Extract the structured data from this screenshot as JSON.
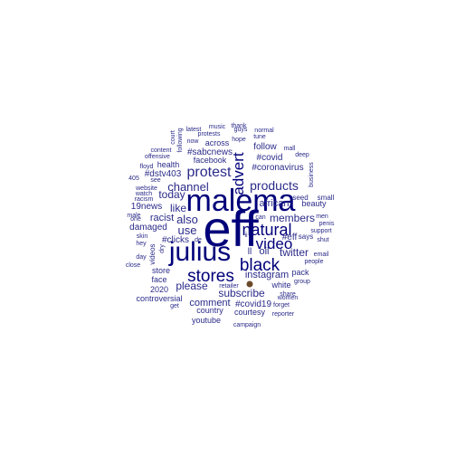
{
  "colors": {
    "background": "#ffffff",
    "small": "#2b2b8a",
    "large": "#00007a"
  },
  "words": [
    {
      "text": "eff",
      "size": "xxl"
    },
    {
      "text": "malema",
      "size": "xl"
    },
    {
      "text": "julius",
      "size": "xl"
    },
    {
      "text": "stores",
      "size": "l"
    },
    {
      "text": "black",
      "size": "l"
    },
    {
      "text": "natural",
      "size": "l"
    },
    {
      "text": "video",
      "size": "l"
    },
    {
      "text": "advert",
      "size": "m"
    },
    {
      "text": "protest",
      "size": "m"
    },
    {
      "text": "channel",
      "size": "m"
    },
    {
      "text": "products",
      "size": "m"
    },
    {
      "text": "today",
      "size": "s"
    },
    {
      "text": "like",
      "size": "s"
    },
    {
      "text": "also",
      "size": "s"
    },
    {
      "text": "use",
      "size": "s"
    },
    {
      "text": "members",
      "size": "s"
    },
    {
      "text": "african",
      "size": "s"
    },
    {
      "text": "instagram",
      "size": "s"
    },
    {
      "text": "subscribe",
      "size": "s"
    },
    {
      "text": "please",
      "size": "s"
    },
    {
      "text": "comment",
      "size": "s"
    },
    {
      "text": "twitter",
      "size": "s"
    },
    {
      "text": "racist",
      "size": "s"
    },
    {
      "text": "oil",
      "size": "s"
    },
    {
      "text": "follow",
      "size": "xs"
    },
    {
      "text": "#covid",
      "size": "xs"
    },
    {
      "text": "#coronavirus",
      "size": "xs"
    },
    {
      "text": "#sabcnews",
      "size": "xs"
    },
    {
      "text": "across",
      "size": "xs"
    },
    {
      "text": "facebook",
      "size": "xs"
    },
    {
      "text": "health",
      "size": "xs"
    },
    {
      "text": "#dstv403",
      "size": "xs"
    },
    {
      "text": "19news",
      "size": "xs"
    },
    {
      "text": "damaged",
      "size": "xs"
    },
    {
      "text": "#clicks",
      "size": "xs"
    },
    {
      "text": "#eff",
      "size": "xs"
    },
    {
      "text": "#covid19",
      "size": "xs"
    },
    {
      "text": "beauty",
      "size": "xs"
    },
    {
      "text": "says",
      "size": "xs"
    },
    {
      "text": "pack",
      "size": "xs"
    },
    {
      "text": "white",
      "size": "xs"
    },
    {
      "text": "store",
      "size": "xs"
    },
    {
      "text": "face",
      "size": "xs"
    },
    {
      "text": "2020",
      "size": "xs"
    },
    {
      "text": "controversial",
      "size": "xs"
    },
    {
      "text": "country",
      "size": "xs"
    },
    {
      "text": "courtesy",
      "size": "xs"
    },
    {
      "text": "youtube",
      "size": "xs"
    },
    {
      "text": "seed",
      "size": "xxs"
    },
    {
      "text": "small",
      "size": "xxs"
    },
    {
      "text": "men",
      "size": "xxs"
    },
    {
      "text": "penis",
      "size": "xxs"
    },
    {
      "text": "support",
      "size": "xxs"
    },
    {
      "text": "shut",
      "size": "xxs"
    },
    {
      "text": "email",
      "size": "xxs"
    },
    {
      "text": "people",
      "size": "xxs"
    },
    {
      "text": "group",
      "size": "xxs"
    },
    {
      "text": "share",
      "size": "xxs"
    },
    {
      "text": "women",
      "size": "xxs"
    },
    {
      "text": "forget",
      "size": "xxs"
    },
    {
      "text": "reporter",
      "size": "xxs"
    },
    {
      "text": "campaign",
      "size": "xxs"
    },
    {
      "text": "retailer",
      "size": "xxs"
    },
    {
      "text": "get",
      "size": "xxs"
    },
    {
      "text": "close",
      "size": "xxs"
    },
    {
      "text": "day",
      "size": "xxs"
    },
    {
      "text": "hey",
      "size": "xxs"
    },
    {
      "text": "skin",
      "size": "xxs"
    },
    {
      "text": "one",
      "size": "xxs"
    },
    {
      "text": "male",
      "size": "xxs"
    },
    {
      "text": "racism",
      "size": "xxs"
    },
    {
      "text": "website",
      "size": "xxs"
    },
    {
      "text": "watch",
      "size": "xxs"
    },
    {
      "text": "405",
      "size": "xxs"
    },
    {
      "text": "see",
      "size": "xxs"
    },
    {
      "text": "floyd",
      "size": "xxs"
    },
    {
      "text": "offensive",
      "size": "xxs"
    },
    {
      "text": "content",
      "size": "xxs"
    },
    {
      "text": "court",
      "size": "xxs"
    },
    {
      "text": "following",
      "size": "xxs"
    },
    {
      "text": "latest",
      "size": "xxs"
    },
    {
      "text": "now",
      "size": "xxs"
    },
    {
      "text": "protests",
      "size": "xxs"
    },
    {
      "text": "music",
      "size": "xxs"
    },
    {
      "text": "thank",
      "size": "xxs"
    },
    {
      "text": "guys",
      "size": "xxs"
    },
    {
      "text": "normal",
      "size": "xxs"
    },
    {
      "text": "tune",
      "size": "xxs"
    },
    {
      "text": "hope",
      "size": "xxs"
    },
    {
      "text": "mall",
      "size": "xxs"
    },
    {
      "text": "deep",
      "size": "xxs"
    },
    {
      "text": "business",
      "size": "xxs"
    },
    {
      "text": "can",
      "size": "xxs"
    },
    {
      "text": "de",
      "size": "xxs"
    },
    {
      "text": "dry",
      "size": "xxs"
    },
    {
      "text": "videos",
      "size": "xxs"
    },
    {
      "text": "ll",
      "size": "xs"
    },
    {
      "text": "ii",
      "size": "xxs"
    }
  ]
}
